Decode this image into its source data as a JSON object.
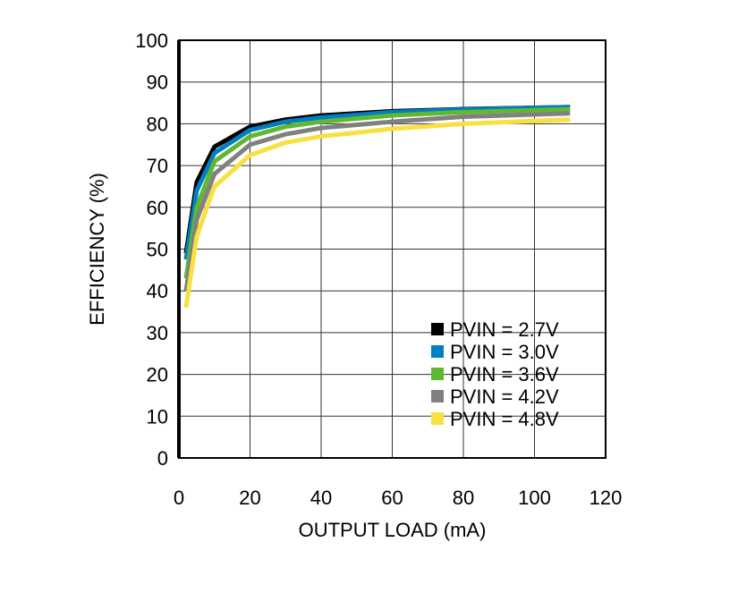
{
  "chart_data": {
    "type": "line",
    "title": "",
    "xlabel": "OUTPUT LOAD (mA)",
    "ylabel": "EFFICIENCY (%)",
    "xlim": [
      0,
      120
    ],
    "ylim": [
      0,
      100
    ],
    "xticks": [
      0,
      20,
      40,
      60,
      80,
      100,
      120
    ],
    "yticks": [
      0,
      10,
      20,
      30,
      40,
      50,
      60,
      70,
      80,
      90,
      100
    ],
    "grid": true,
    "legend_position": "bottom-right",
    "x": [
      2,
      5,
      10,
      20,
      30,
      40,
      60,
      80,
      110
    ],
    "series": [
      {
        "name": "PVIN = 2.7V",
        "color": "#000000",
        "values": [
          49,
          66,
          74.5,
          79.3,
          81,
          82,
          83,
          83.5,
          84
        ]
      },
      {
        "name": "PVIN = 3.0V",
        "color": "#0080c0",
        "values": [
          47.5,
          64,
          73,
          78.5,
          80.5,
          81.5,
          82.8,
          83.4,
          84
        ]
      },
      {
        "name": "PVIN = 3.6V",
        "color": "#60b830",
        "values": [
          43,
          60,
          71,
          77,
          79.3,
          80.5,
          82,
          82.8,
          83.5
        ]
      },
      {
        "name": "PVIN = 4.2V",
        "color": "#808080",
        "values": [
          40,
          57,
          68,
          75,
          77.5,
          79,
          80.5,
          81.7,
          82.5
        ]
      },
      {
        "name": "PVIN = 4.8V",
        "color": "#f8e040",
        "values": [
          36,
          53,
          65,
          72.5,
          75.5,
          77,
          78.8,
          80,
          81
        ]
      }
    ]
  }
}
